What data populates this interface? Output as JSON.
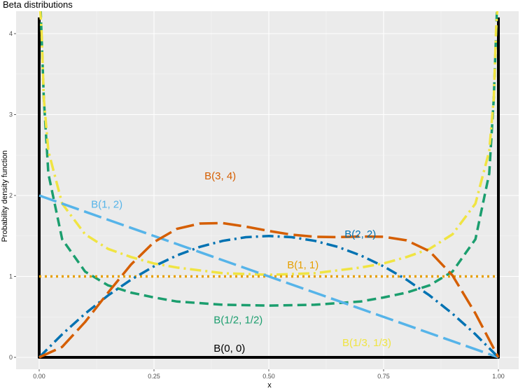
{
  "chart_data": {
    "type": "line",
    "title": "Beta distributions",
    "xlabel": "x",
    "ylabel": "Probability density function",
    "xlim": [
      0,
      1
    ],
    "ylim": [
      0,
      4.2
    ],
    "x_ticks": [
      "0.00",
      "0.25",
      "0.50",
      "0.75",
      "1.00"
    ],
    "y_ticks": [
      "0",
      "1",
      "2",
      "3",
      "4"
    ],
    "grid": true,
    "background": "#ebebeb",
    "series": [
      {
        "name": "B(0, 0)",
        "alpha": 0,
        "beta": 0,
        "color": "#000000",
        "dash": "solid",
        "label_pos": {
          "x": 0.38,
          "y": 0.07
        },
        "x": [
          0,
          0,
          1,
          1
        ],
        "y": [
          4.2,
          0,
          0,
          4.2
        ]
      },
      {
        "name": "B(1/2, 1/2)",
        "alpha": 0.5,
        "beta": 0.5,
        "color": "#1b9e6e",
        "dash": "dashed",
        "label_pos": {
          "x": 0.38,
          "y": 0.42
        },
        "x": [
          0.003,
          0.01,
          0.02,
          0.05,
          0.1,
          0.15,
          0.2,
          0.25,
          0.3,
          0.4,
          0.5,
          0.6,
          0.7,
          0.75,
          0.8,
          0.85,
          0.9,
          0.95,
          0.98,
          0.99,
          0.997
        ],
        "y": [
          5.8,
          3.2,
          2.27,
          1.46,
          1.06,
          0.89,
          0.8,
          0.74,
          0.69,
          0.65,
          0.64,
          0.65,
          0.69,
          0.74,
          0.8,
          0.89,
          1.06,
          1.46,
          2.27,
          3.2,
          5.8
        ]
      },
      {
        "name": "B(1/3, 1/3)",
        "alpha": 0.3333,
        "beta": 0.3333,
        "color": "#f0e442",
        "dash": "dashdot",
        "label_pos": {
          "x": 0.66,
          "y": 0.14
        },
        "x": [
          0.002,
          0.005,
          0.01,
          0.02,
          0.05,
          0.1,
          0.15,
          0.2,
          0.25,
          0.3,
          0.4,
          0.5,
          0.6,
          0.7,
          0.75,
          0.8,
          0.85,
          0.9,
          0.95,
          0.98,
          0.99,
          0.995,
          0.998
        ],
        "y": [
          5.5,
          4.05,
          3.2,
          2.55,
          1.9,
          1.52,
          1.34,
          1.24,
          1.16,
          1.11,
          1.04,
          1.02,
          1.04,
          1.11,
          1.16,
          1.24,
          1.34,
          1.52,
          1.9,
          2.55,
          3.2,
          4.05,
          5.5
        ]
      },
      {
        "name": "B(1, 1)",
        "alpha": 1,
        "beta": 1,
        "color": "#e69f00",
        "dash": "dotted",
        "label_pos": {
          "x": 0.54,
          "y": 1.1
        },
        "x": [
          0,
          1
        ],
        "y": [
          1,
          1
        ]
      },
      {
        "name": "B(1, 2)",
        "alpha": 1,
        "beta": 2,
        "color": "#56b4e9",
        "dash": "longdash",
        "label_pos": {
          "x": 0.113,
          "y": 1.85
        },
        "x": [
          0,
          1
        ],
        "y": [
          2,
          0
        ]
      },
      {
        "name": "B(2, 2)",
        "alpha": 2,
        "beta": 2,
        "color": "#0072b2",
        "dash": "dashdot",
        "label_pos": {
          "x": 0.665,
          "y": 1.48
        },
        "x": [
          0,
          0.05,
          0.1,
          0.15,
          0.2,
          0.25,
          0.3,
          0.35,
          0.4,
          0.45,
          0.5,
          0.55,
          0.6,
          0.65,
          0.7,
          0.75,
          0.8,
          0.85,
          0.9,
          0.95,
          1
        ],
        "y": [
          0,
          0.285,
          0.54,
          0.765,
          0.96,
          1.125,
          1.26,
          1.365,
          1.44,
          1.485,
          1.5,
          1.485,
          1.44,
          1.365,
          1.26,
          1.125,
          0.96,
          0.765,
          0.54,
          0.285,
          0
        ]
      },
      {
        "name": "B(3, 4)",
        "alpha": 3,
        "beta": 4,
        "color": "#d55e00",
        "dash": "longdash",
        "label_pos": {
          "x": 0.36,
          "y": 2.2
        },
        "x": [
          0,
          0.05,
          0.1,
          0.15,
          0.2,
          0.25,
          0.3,
          0.35,
          0.4,
          0.45,
          0.5,
          0.55,
          0.6,
          0.65,
          0.7,
          0.75,
          0.8,
          0.85,
          0.9,
          0.95,
          1
        ],
        "y": [
          0,
          0.129,
          0.437,
          0.8,
          1.147,
          1.424,
          1.588,
          1.654,
          1.659,
          1.616,
          1.562,
          1.516,
          1.49,
          1.486,
          1.493,
          1.49,
          1.446,
          1.312,
          1.012,
          0.542,
          0
        ]
      }
    ]
  }
}
